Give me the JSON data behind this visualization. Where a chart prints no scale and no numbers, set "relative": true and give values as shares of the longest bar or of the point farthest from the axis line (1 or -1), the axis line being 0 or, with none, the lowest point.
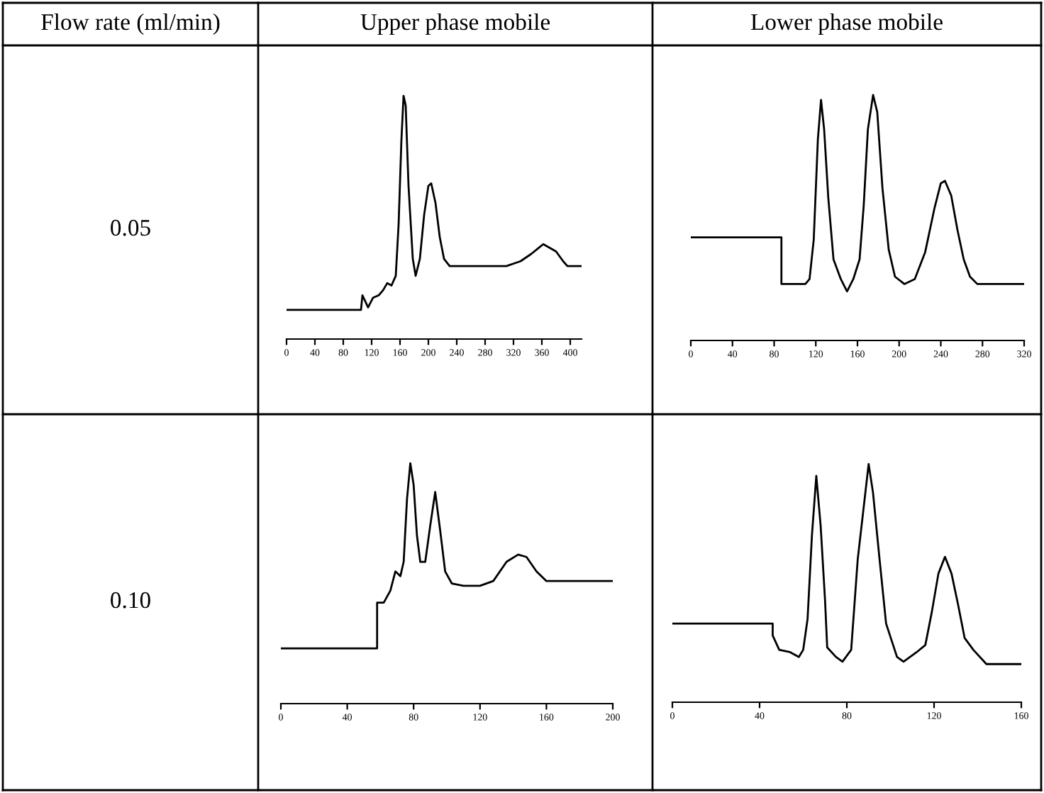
{
  "chart_data": [
    {
      "type": "line",
      "title": "Upper phase mobile",
      "ylabel": "0.05",
      "annotations": [
        "Flow rate (ml/min)"
      ],
      "relative": true,
      "tick_labels": "x",
      "grid": false,
      "legend": false,
      "marker": "none",
      "line_style": "solid",
      "xlim": [
        0,
        416
      ],
      "xticks": [
        0,
        40,
        80,
        120,
        160,
        200,
        240,
        280,
        320,
        360,
        400
      ],
      "series": [
        {
          "color": "#000000",
          "x": [
            0,
            105,
            107,
            115,
            122,
            130,
            136,
            142,
            148,
            154,
            158,
            162,
            165,
            168,
            172,
            178,
            182,
            188,
            194,
            200,
            204,
            210,
            216,
            222,
            230,
            240,
            310,
            330,
            345,
            362,
            380,
            390,
            396,
            416
          ],
          "values": [
            0.12,
            0.12,
            0.18,
            0.13,
            0.17,
            0.18,
            0.2,
            0.23,
            0.22,
            0.26,
            0.47,
            0.82,
            1,
            0.96,
            0.63,
            0.33,
            0.26,
            0.33,
            0.51,
            0.63,
            0.64,
            0.56,
            0.42,
            0.33,
            0.3,
            0.3,
            0.3,
            0.32,
            0.35,
            0.39,
            0.36,
            0.32,
            0.3,
            0.3
          ]
        }
      ]
    },
    {
      "type": "line",
      "title": "Lower phase mobile",
      "relative": true,
      "tick_labels": "x",
      "grid": false,
      "legend": false,
      "marker": "none",
      "line_style": "solid",
      "xlim": [
        0,
        320
      ],
      "xticks": [
        0,
        40,
        80,
        120,
        160,
        200,
        240,
        280,
        320
      ],
      "series": [
        {
          "color": "#000000",
          "x": [
            0,
            87,
            87,
            110,
            114,
            118,
            122,
            125,
            128,
            132,
            137,
            144,
            150,
            156,
            162,
            166,
            170,
            175,
            179,
            184,
            190,
            196,
            205,
            215,
            225,
            234,
            240,
            244,
            250,
            256,
            262,
            268,
            275,
            320
          ],
          "values": [
            0.42,
            0.42,
            0.23,
            0.23,
            0.25,
            0.41,
            0.82,
            0.98,
            0.86,
            0.58,
            0.33,
            0.25,
            0.2,
            0.25,
            0.33,
            0.55,
            0.86,
            1,
            0.93,
            0.62,
            0.37,
            0.26,
            0.23,
            0.25,
            0.36,
            0.54,
            0.64,
            0.65,
            0.59,
            0.45,
            0.33,
            0.26,
            0.23,
            0.23
          ]
        }
      ]
    },
    {
      "type": "line",
      "ylabel": "0.10",
      "relative": true,
      "tick_labels": "x",
      "grid": false,
      "legend": false,
      "marker": "none",
      "line_style": "solid",
      "xlim": [
        0,
        200
      ],
      "xticks": [
        0,
        40,
        80,
        120,
        160,
        200
      ],
      "series": [
        {
          "color": "#000000",
          "x": [
            0,
            58,
            58,
            62,
            66,
            69,
            72,
            74,
            76,
            78,
            80,
            82,
            84,
            87,
            90,
            93,
            96,
            99,
            103,
            110,
            120,
            128,
            136,
            143,
            148,
            154,
            160,
            200
          ],
          "values": [
            0.23,
            0.23,
            0.42,
            0.42,
            0.47,
            0.55,
            0.53,
            0.59,
            0.85,
            1,
            0.91,
            0.7,
            0.59,
            0.59,
            0.74,
            0.88,
            0.72,
            0.55,
            0.5,
            0.49,
            0.49,
            0.51,
            0.59,
            0.62,
            0.61,
            0.55,
            0.51,
            0.51
          ]
        }
      ]
    },
    {
      "type": "line",
      "relative": true,
      "tick_labels": "x",
      "grid": false,
      "legend": false,
      "marker": "none",
      "line_style": "solid",
      "xlim": [
        0,
        160
      ],
      "xticks": [
        0,
        40,
        80,
        120,
        160
      ],
      "series": [
        {
          "color": "#000000",
          "x": [
            0,
            46,
            46,
            49,
            54,
            58,
            60,
            62,
            64,
            66,
            68,
            70,
            71,
            75,
            78,
            82,
            85,
            88,
            90,
            92,
            95,
            98,
            103,
            106,
            112,
            116,
            119,
            122,
            125,
            128,
            131,
            134,
            138,
            144,
            160
          ],
          "values": [
            0.33,
            0.33,
            0.28,
            0.22,
            0.21,
            0.19,
            0.22,
            0.35,
            0.7,
            0.95,
            0.74,
            0.43,
            0.23,
            0.19,
            0.17,
            0.22,
            0.6,
            0.84,
            1,
            0.88,
            0.6,
            0.33,
            0.19,
            0.17,
            0.21,
            0.24,
            0.38,
            0.54,
            0.61,
            0.54,
            0.41,
            0.27,
            0.22,
            0.16,
            0.16
          ]
        }
      ]
    }
  ]
}
